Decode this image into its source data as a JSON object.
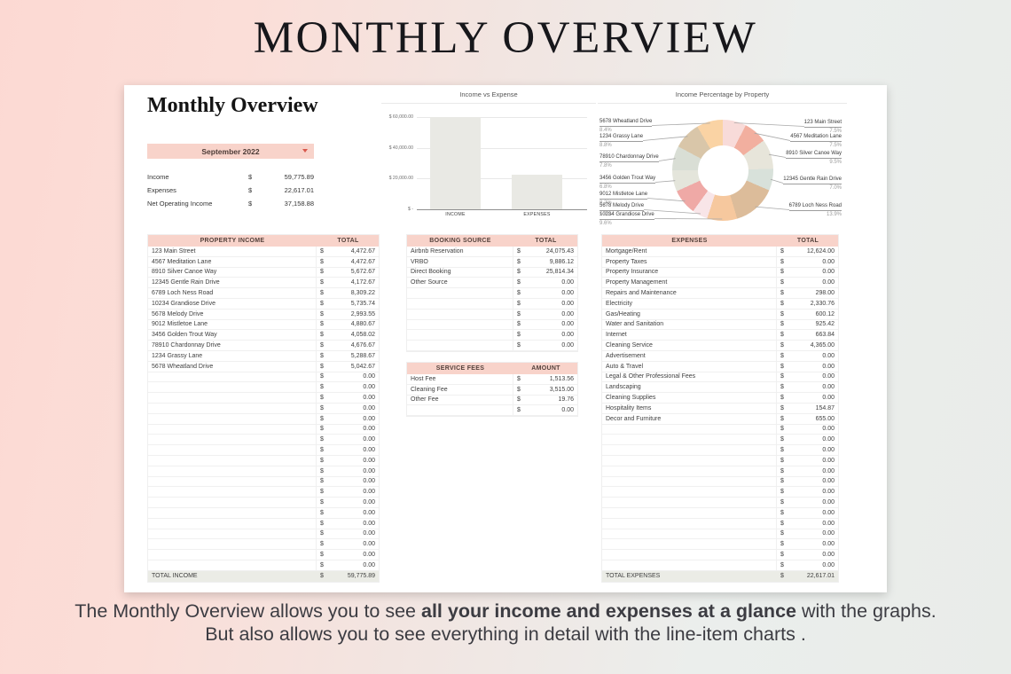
{
  "page": {
    "title": "MONTHLY OVERVIEW",
    "caption": {
      "line1_pre": "The Monthly Overview allows you to see ",
      "line1_bold": "all your income and expenses at a glance",
      "line1_post": " with the graphs.",
      "line2": "But also allows you to see everything in detail with the line-item charts ."
    }
  },
  "sheet": {
    "heading": "Monthly Overview",
    "month_selector": {
      "value": "September 2022",
      "icon": "dropdown-arrow-icon"
    },
    "summary": [
      {
        "label": "Income",
        "currency": "$",
        "value": "59,775.89"
      },
      {
        "label": "Expenses",
        "currency": "$",
        "value": "22,617.01"
      },
      {
        "label": "Net Operating Income",
        "currency": "$",
        "value": "37,158.88"
      }
    ],
    "tables": {
      "property_income": {
        "headers": [
          "PROPERTY INCOME",
          "TOTAL"
        ],
        "currency": "$",
        "rows": [
          [
            "123 Main Street",
            "4,472.67"
          ],
          [
            "4567 Meditation Lane",
            "4,472.67"
          ],
          [
            "8910 Silver Canoe Way",
            "5,672.67"
          ],
          [
            "12345 Gentle Rain Drive",
            "4,172.67"
          ],
          [
            "6789 Loch Ness Road",
            "8,309.22"
          ],
          [
            "10234 Grandiose Drive",
            "5,735.74"
          ],
          [
            "5678 Melody Drive",
            "2,993.55"
          ],
          [
            "9012 Mistletoe Lane",
            "4,880.67"
          ],
          [
            "3456 Golden Trout Way",
            "4,058.02"
          ],
          [
            "78910 Chardonnay Drive",
            "4,676.67"
          ],
          [
            "1234 Grassy Lane",
            "5,288.67"
          ],
          [
            "5678 Wheatland Drive",
            "5,042.67"
          ]
        ],
        "empty_rows": 19,
        "empty_value": "0.00",
        "total_row": [
          "TOTAL INCOME",
          "59,775.89"
        ]
      },
      "booking_source": {
        "headers": [
          "BOOKING SOURCE",
          "TOTAL"
        ],
        "currency": "$",
        "rows": [
          [
            "Airbnb Reservation",
            "24,075.43"
          ],
          [
            "VRBO",
            "9,886.12"
          ],
          [
            "Direct Booking",
            "25,814.34"
          ],
          [
            "Other Source",
            "0.00"
          ]
        ],
        "empty_rows": 6,
        "empty_value": "0.00"
      },
      "service_fees": {
        "headers": [
          "SERVICE FEES",
          "AMOUNT"
        ],
        "currency": "$",
        "rows": [
          [
            "Host Fee",
            "1,513.56"
          ],
          [
            "Cleaning Fee",
            "3,515.00"
          ],
          [
            "Other Fee",
            "19.76"
          ]
        ],
        "empty_rows": 1,
        "empty_value": "0.00"
      },
      "expenses": {
        "headers": [
          "EXPENSES",
          "TOTAL"
        ],
        "currency": "$",
        "rows": [
          [
            "Mortgage/Rent",
            "12,624.00"
          ],
          [
            "Property Taxes",
            "0.00"
          ],
          [
            "Property Insurance",
            "0.00"
          ],
          [
            "Property Management",
            "0.00"
          ],
          [
            "Repairs and Maintenance",
            "298.00"
          ],
          [
            "Electricity",
            "2,330.76"
          ],
          [
            "Gas/Heating",
            "600.12"
          ],
          [
            "Water and Sanitation",
            "925.42"
          ],
          [
            "Internet",
            "663.84"
          ],
          [
            "Cleaning Service",
            "4,365.00"
          ],
          [
            "Advertisement",
            "0.00"
          ],
          [
            "Auto & Travel",
            "0.00"
          ],
          [
            "Legal & Other Professional Fees",
            "0.00"
          ],
          [
            "Landscaping",
            "0.00"
          ],
          [
            "Cleaning Supplies",
            "0.00"
          ],
          [
            "Hospitality Items",
            "154.87"
          ],
          [
            "Decor and Furniture",
            "655.00"
          ]
        ],
        "empty_rows": 14,
        "empty_value": "0.00",
        "total_row": [
          "TOTAL EXPENSES",
          "22,617.01"
        ]
      }
    }
  },
  "chart_data": [
    {
      "type": "bar",
      "title": "Income vs Expense",
      "categories": [
        "INCOME",
        "EXPENSES"
      ],
      "values": [
        59775.89,
        22617.01
      ],
      "ylim": [
        0,
        60000
      ],
      "yticks": [
        60000,
        40000,
        20000,
        0
      ],
      "ytick_labels": [
        "$ 60,000.00",
        "$ 40,000.00",
        "$ 20,000.00",
        "$ -"
      ],
      "grid": true,
      "legend": "none",
      "bar_color": "#e9e9e4"
    },
    {
      "type": "donut",
      "title": "Income Percentage by Property",
      "slices": [
        {
          "label": "123 Main Street",
          "pct": 7.5,
          "color": "#f8dbd9",
          "side": "right"
        },
        {
          "label": "4567 Meditation Lane",
          "pct": 7.5,
          "color": "#f2af9f",
          "side": "right"
        },
        {
          "label": "8910 Silver Canoe Way",
          "pct": 9.5,
          "color": "#e7e5da",
          "side": "right"
        },
        {
          "label": "12345 Gentle Rain Drive",
          "pct": 7.0,
          "color": "#d8e1da",
          "side": "right"
        },
        {
          "label": "6789 Loch Ness Road",
          "pct": 13.9,
          "color": "#dcbc9a",
          "side": "right"
        },
        {
          "label": "10234 Grandiose Drive",
          "pct": 9.6,
          "color": "#f6c89e",
          "side": "left"
        },
        {
          "label": "5678 Melody Drive",
          "pct": 5.0,
          "color": "#f8e5e8",
          "side": "left"
        },
        {
          "label": "9012 Mistletoe Lane",
          "pct": 8.2,
          "color": "#efa9a6",
          "side": "left"
        },
        {
          "label": "3456 Golden Trout Way",
          "pct": 6.8,
          "color": "#e4e5db",
          "side": "left"
        },
        {
          "label": "78910 Chardonnay Drive",
          "pct": 7.8,
          "color": "#d9ded5",
          "side": "left"
        },
        {
          "label": "1234 Grassy Lane",
          "pct": 8.8,
          "color": "#d9c6a9",
          "side": "left"
        },
        {
          "label": "5678 Wheatland Drive",
          "pct": 8.4,
          "color": "#fad3a4",
          "side": "left"
        }
      ]
    }
  ],
  "colors": {
    "accent_pink": "#f8d3ca",
    "caret_red": "#d9584c",
    "total_row_bg": "#ebece6",
    "table_border": "#efefef"
  }
}
